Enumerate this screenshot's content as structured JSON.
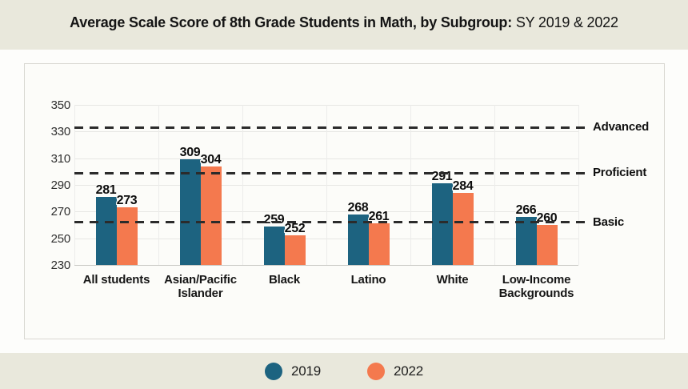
{
  "title": {
    "bold": "Average Scale Score of 8th Grade Students in Math, by Subgroup:",
    "regular": " SY 2019 & 2022"
  },
  "chart_data": {
    "type": "bar",
    "title": "Average Scale Score of 8th Grade Students in Math, by Subgroup: SY 2019 & 2022",
    "categories": [
      "All students",
      "Asian/Pacific\nIslander",
      "Black",
      "Latino",
      "White",
      "Low-Income\nBackgrounds"
    ],
    "series": [
      {
        "name": "2019",
        "color": "#1d6380",
        "values": [
          281,
          309,
          259,
          268,
          291,
          266
        ]
      },
      {
        "name": "2022",
        "color": "#f4794e",
        "values": [
          273,
          304,
          252,
          261,
          284,
          260
        ]
      }
    ],
    "ylim": [
      230,
      350
    ],
    "yticks": [
      230,
      250,
      270,
      290,
      310,
      330,
      350
    ],
    "reference_lines": [
      {
        "label": "Basic",
        "value": 262
      },
      {
        "label": "Proficient",
        "value": 299
      },
      {
        "label": "Advanced",
        "value": 333
      }
    ],
    "grid": true,
    "value_labels": true,
    "legend_position": "bottom",
    "xlabel": "",
    "ylabel": ""
  },
  "colors": {
    "background": "#e9e8dc",
    "band": "#fdfdfb",
    "card_border": "#d9d8d2",
    "grid": "#e7e7e4",
    "axis": "#c8c8c4",
    "reference": "#2b2b2b",
    "series_2019": "#1d6380",
    "series_2022": "#f4794e"
  }
}
